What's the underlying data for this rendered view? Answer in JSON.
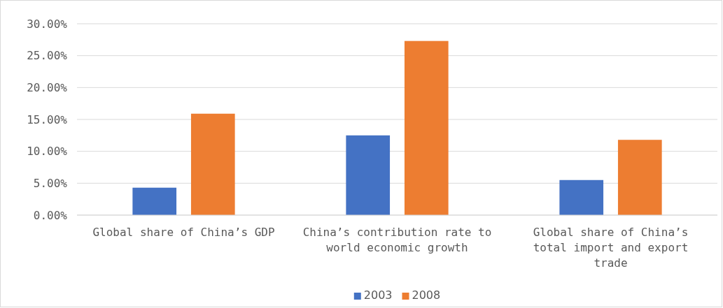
{
  "chart_data": {
    "type": "bar",
    "categories": [
      "Global share of China’s GDP",
      "China’s contribution rate to world economic growth",
      "Global share of China’s total import and export trade"
    ],
    "series": [
      {
        "name": "2003",
        "color": "#4472c4",
        "values": [
          4.3,
          12.5,
          5.5
        ]
      },
      {
        "name": "2008",
        "color": "#ed7d31",
        "values": [
          15.9,
          27.3,
          11.8
        ]
      }
    ],
    "ylim": [
      0,
      30
    ],
    "yticks": [
      {
        "value": 0,
        "label": "0.00%"
      },
      {
        "value": 5,
        "label": "5.00%"
      },
      {
        "value": 10,
        "label": "10.00%"
      },
      {
        "value": 15,
        "label": "15.00%"
      },
      {
        "value": 20,
        "label": "20.00%"
      },
      {
        "value": 25,
        "label": "25.00%"
      },
      {
        "value": 30,
        "label": "30.00%"
      }
    ],
    "grid": "y",
    "legend": "bottom"
  }
}
